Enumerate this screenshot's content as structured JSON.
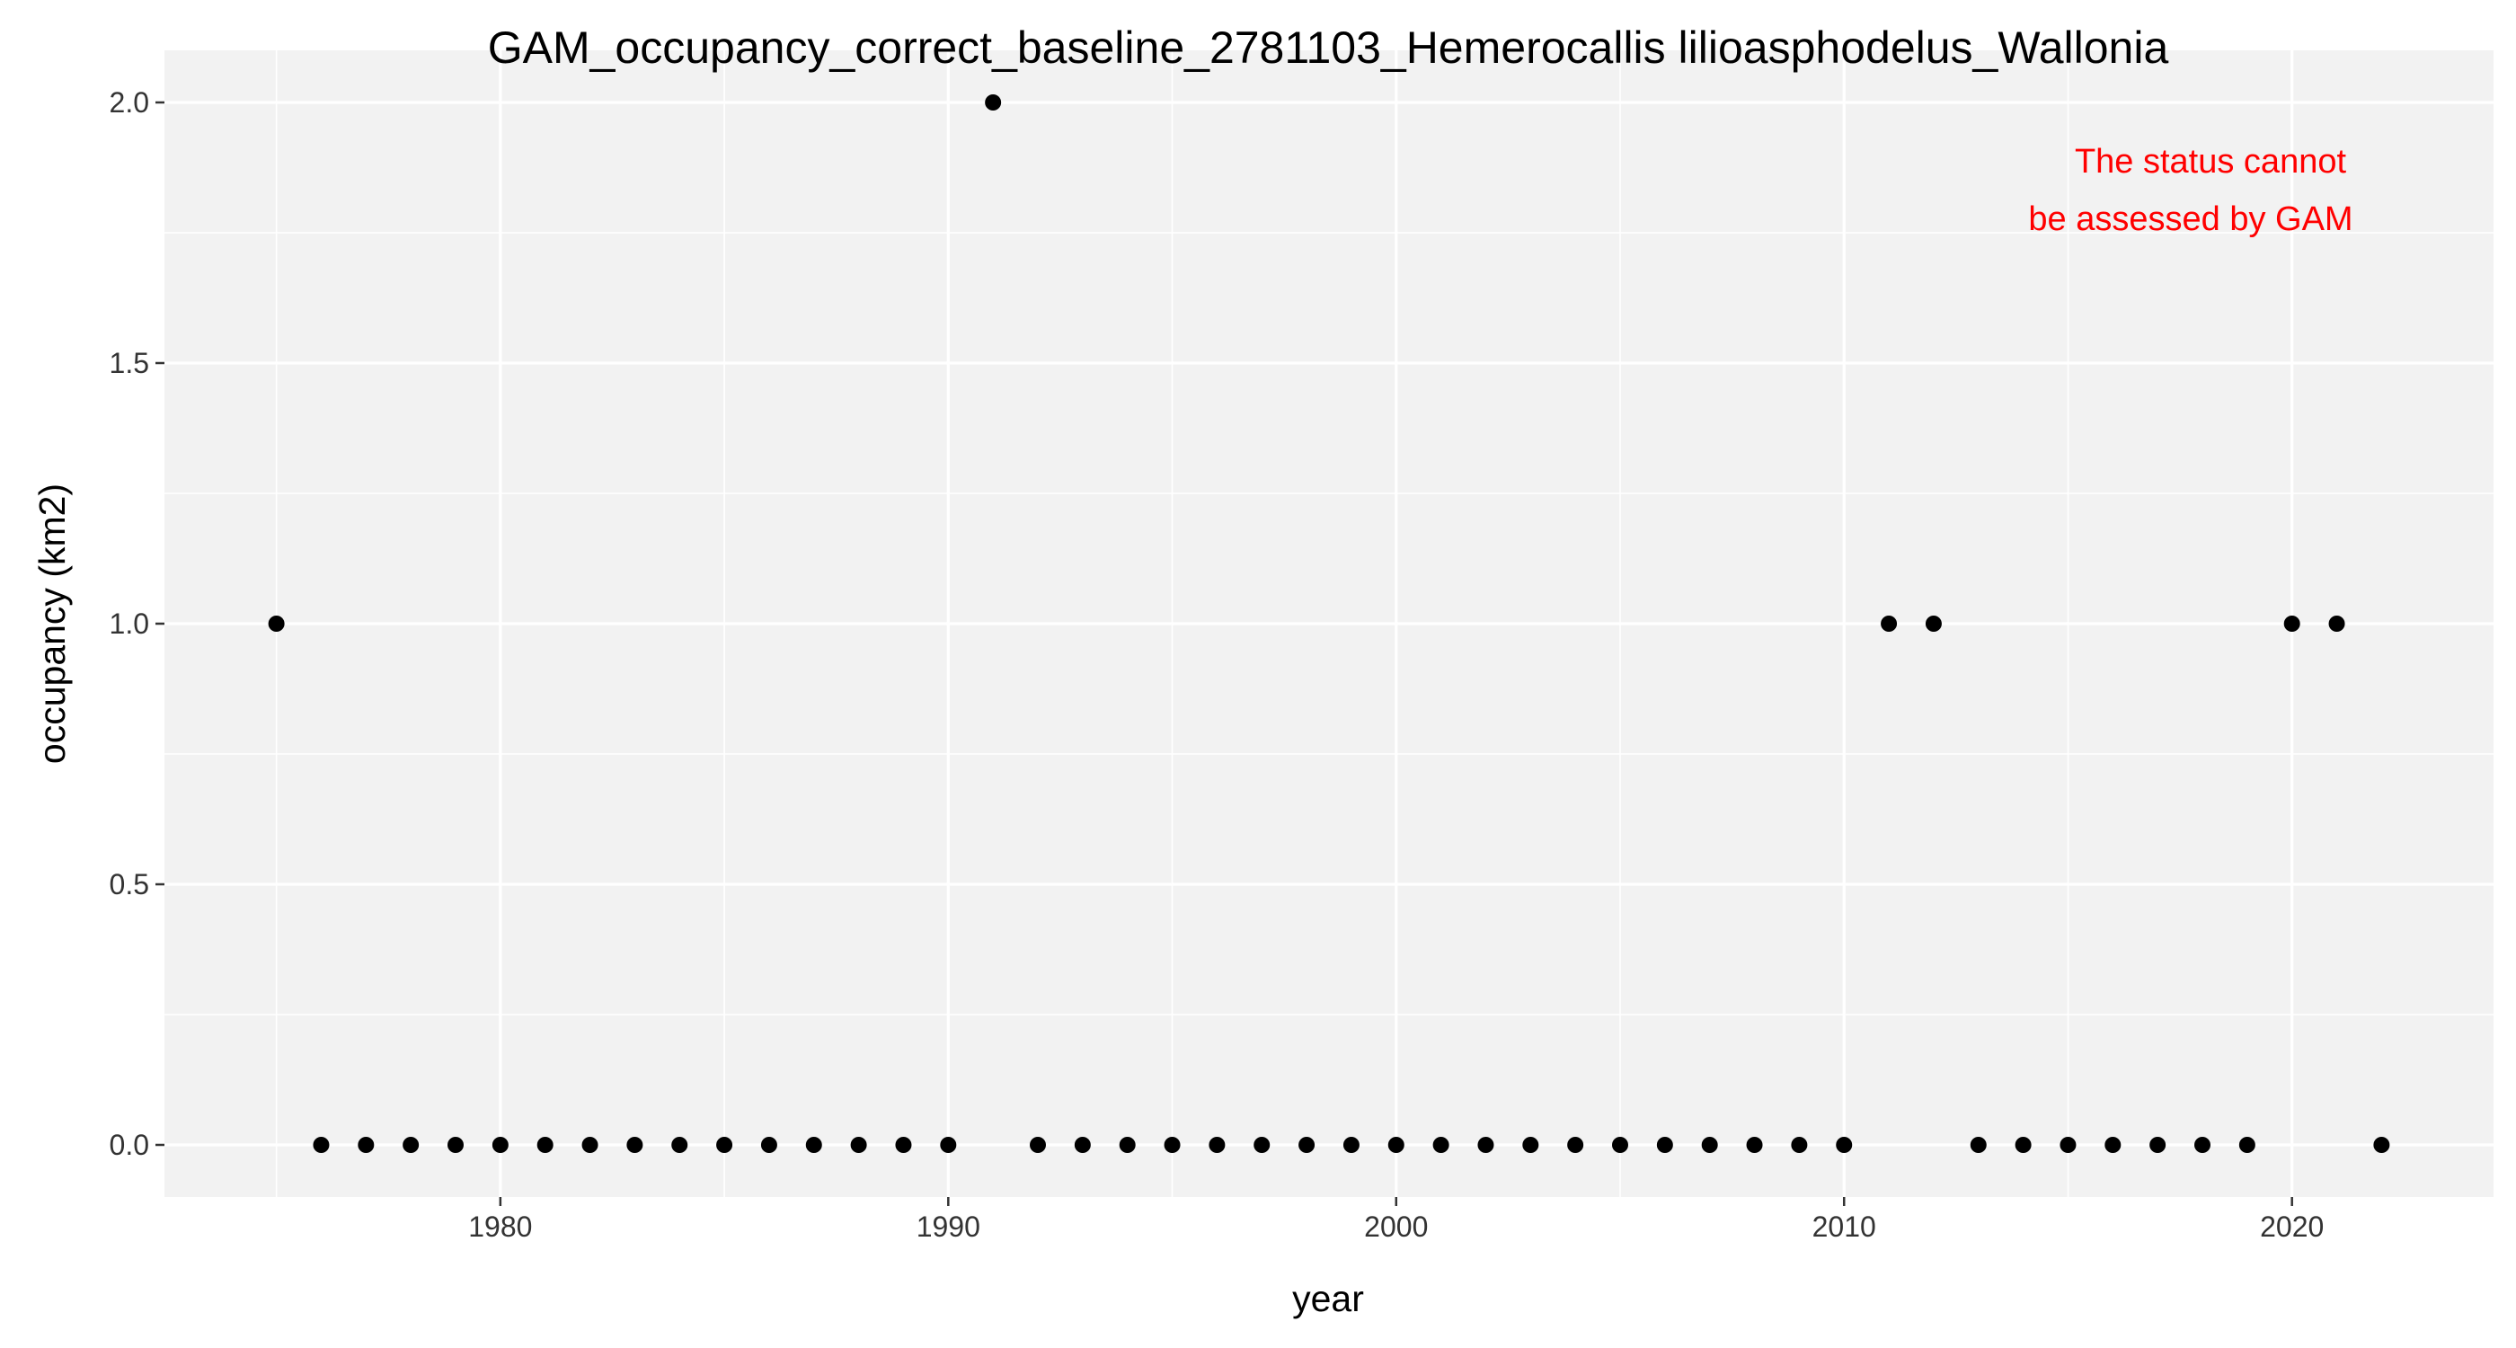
{
  "chart_data": {
    "type": "scatter",
    "title": "GAM_occupancy_correct_baseline_2781103_Hemerocallis lilioasphodelus_Wallonia",
    "xlabel": "year",
    "ylabel": "occupancy (km2)",
    "xlim": [
      1972.5,
      2024.5
    ],
    "ylim": [
      -0.1,
      2.1
    ],
    "x_ticks": [
      1980,
      1990,
      2000,
      2010,
      2020
    ],
    "y_ticks": [
      0.0,
      0.5,
      1.0,
      1.5,
      2.0
    ],
    "x_tick_labels": [
      "1980",
      "1990",
      "2000",
      "2010",
      "2020"
    ],
    "y_tick_labels": [
      "0.0",
      "0.5",
      "1.0",
      "1.5",
      "2.0"
    ],
    "grid": true,
    "colors": {
      "panel": "#f2f2f2",
      "grid": "#ffffff",
      "point": "#000000",
      "annotation": "#ff0000"
    },
    "points": [
      {
        "x": 1975,
        "y": 1
      },
      {
        "x": 1976,
        "y": 0
      },
      {
        "x": 1977,
        "y": 0
      },
      {
        "x": 1978,
        "y": 0
      },
      {
        "x": 1979,
        "y": 0
      },
      {
        "x": 1980,
        "y": 0
      },
      {
        "x": 1981,
        "y": 0
      },
      {
        "x": 1982,
        "y": 0
      },
      {
        "x": 1983,
        "y": 0
      },
      {
        "x": 1984,
        "y": 0
      },
      {
        "x": 1985,
        "y": 0
      },
      {
        "x": 1986,
        "y": 0
      },
      {
        "x": 1987,
        "y": 0
      },
      {
        "x": 1988,
        "y": 0
      },
      {
        "x": 1989,
        "y": 0
      },
      {
        "x": 1990,
        "y": 0
      },
      {
        "x": 1991,
        "y": 2
      },
      {
        "x": 1992,
        "y": 0
      },
      {
        "x": 1993,
        "y": 0
      },
      {
        "x": 1994,
        "y": 0
      },
      {
        "x": 1995,
        "y": 0
      },
      {
        "x": 1996,
        "y": 0
      },
      {
        "x": 1997,
        "y": 0
      },
      {
        "x": 1998,
        "y": 0
      },
      {
        "x": 1999,
        "y": 0
      },
      {
        "x": 2000,
        "y": 0
      },
      {
        "x": 2001,
        "y": 0
      },
      {
        "x": 2002,
        "y": 0
      },
      {
        "x": 2003,
        "y": 0
      },
      {
        "x": 2004,
        "y": 0
      },
      {
        "x": 2005,
        "y": 0
      },
      {
        "x": 2006,
        "y": 0
      },
      {
        "x": 2007,
        "y": 0
      },
      {
        "x": 2008,
        "y": 0
      },
      {
        "x": 2009,
        "y": 0
      },
      {
        "x": 2010,
        "y": 0
      },
      {
        "x": 2011,
        "y": 1
      },
      {
        "x": 2012,
        "y": 1
      },
      {
        "x": 2013,
        "y": 0
      },
      {
        "x": 2014,
        "y": 0
      },
      {
        "x": 2015,
        "y": 0
      },
      {
        "x": 2016,
        "y": 0
      },
      {
        "x": 2017,
        "y": 0
      },
      {
        "x": 2018,
        "y": 0
      },
      {
        "x": 2019,
        "y": 0
      },
      {
        "x": 2020,
        "y": 1
      },
      {
        "x": 2021,
        "y": 1
      },
      {
        "x": 2022,
        "y": 0
      }
    ],
    "annotation": [
      "The status cannot",
      "be assessed by GAM"
    ]
  }
}
